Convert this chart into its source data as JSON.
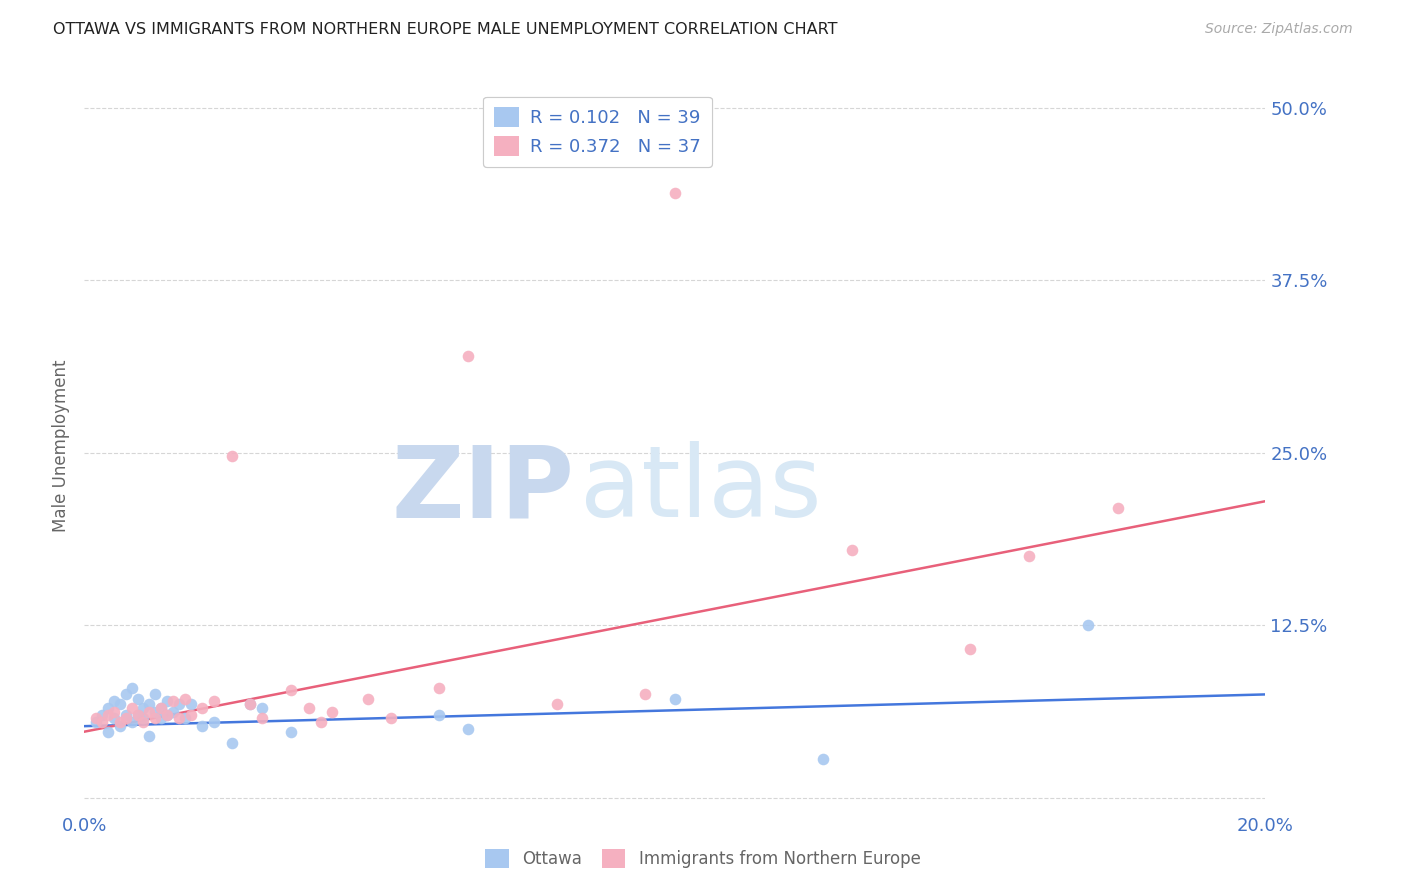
{
  "title": "OTTAWA VS IMMIGRANTS FROM NORTHERN EUROPE MALE UNEMPLOYMENT CORRELATION CHART",
  "source": "Source: ZipAtlas.com",
  "ylabel": "Male Unemployment",
  "xlim": [
    0.0,
    0.2
  ],
  "ylim": [
    -0.01,
    0.52
  ],
  "yticks": [
    0.0,
    0.125,
    0.25,
    0.375,
    0.5
  ],
  "ytick_labels": [
    "",
    "12.5%",
    "25.0%",
    "37.5%",
    "50.0%"
  ],
  "xticks": [
    0.0,
    0.05,
    0.1,
    0.15,
    0.2
  ],
  "xtick_labels": [
    "0.0%",
    "",
    "",
    "",
    "20.0%"
  ],
  "blue_R": 0.102,
  "blue_N": 39,
  "pink_R": 0.372,
  "pink_N": 37,
  "blue_color": "#a8c8f0",
  "pink_color": "#f5b0c0",
  "blue_line_color": "#4477dd",
  "pink_line_color": "#e8607a",
  "title_color": "#222222",
  "axis_label_color": "#666666",
  "tick_color": "#4472c4",
  "watermark_zip_color": "#c8d8ee",
  "watermark_atlas_color": "#d8e8f5",
  "legend_label_color": "#4472c4",
  "grid_color": "#cccccc",
  "background_color": "#ffffff",
  "blue_scatter_x": [
    0.002,
    0.003,
    0.004,
    0.004,
    0.005,
    0.005,
    0.006,
    0.006,
    0.007,
    0.007,
    0.008,
    0.008,
    0.009,
    0.009,
    0.01,
    0.01,
    0.011,
    0.011,
    0.012,
    0.012,
    0.013,
    0.013,
    0.014,
    0.014,
    0.015,
    0.016,
    0.017,
    0.018,
    0.02,
    0.022,
    0.025,
    0.028,
    0.03,
    0.035,
    0.06,
    0.065,
    0.1,
    0.125,
    0.17
  ],
  "blue_scatter_y": [
    0.055,
    0.06,
    0.048,
    0.065,
    0.058,
    0.07,
    0.052,
    0.068,
    0.06,
    0.075,
    0.055,
    0.08,
    0.06,
    0.072,
    0.058,
    0.065,
    0.068,
    0.045,
    0.062,
    0.075,
    0.058,
    0.065,
    0.06,
    0.07,
    0.062,
    0.068,
    0.058,
    0.068,
    0.052,
    0.055,
    0.04,
    0.068,
    0.065,
    0.048,
    0.06,
    0.05,
    0.072,
    0.028,
    0.125
  ],
  "pink_scatter_x": [
    0.002,
    0.003,
    0.004,
    0.005,
    0.006,
    0.007,
    0.008,
    0.009,
    0.01,
    0.011,
    0.012,
    0.013,
    0.014,
    0.015,
    0.016,
    0.017,
    0.018,
    0.02,
    0.022,
    0.025,
    0.028,
    0.03,
    0.035,
    0.038,
    0.04,
    0.042,
    0.048,
    0.052,
    0.06,
    0.065,
    0.08,
    0.095,
    0.1,
    0.13,
    0.15,
    0.16,
    0.175
  ],
  "pink_scatter_y": [
    0.058,
    0.055,
    0.06,
    0.062,
    0.055,
    0.058,
    0.065,
    0.06,
    0.055,
    0.062,
    0.058,
    0.065,
    0.06,
    0.07,
    0.058,
    0.072,
    0.06,
    0.065,
    0.07,
    0.248,
    0.068,
    0.058,
    0.078,
    0.065,
    0.055,
    0.062,
    0.072,
    0.058,
    0.08,
    0.32,
    0.068,
    0.075,
    0.438,
    0.18,
    0.108,
    0.175,
    0.21
  ],
  "blue_line_x": [
    0.0,
    0.2
  ],
  "blue_line_y": [
    0.052,
    0.075
  ],
  "pink_line_x": [
    0.0,
    0.2
  ],
  "pink_line_y": [
    0.048,
    0.215
  ]
}
